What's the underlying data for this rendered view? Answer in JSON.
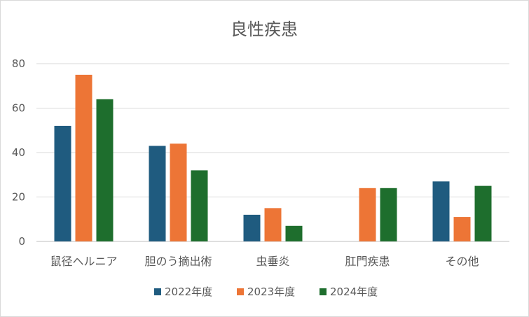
{
  "chart_data": {
    "type": "bar",
    "title": "良性疾患",
    "categories": [
      "鼠径ヘルニア",
      "胆のう摘出術",
      "虫垂炎",
      "肛門疾患",
      "その他"
    ],
    "series": [
      {
        "name": "2022年度",
        "color": "#1f5b7f",
        "values": [
          52,
          43,
          12,
          null,
          27
        ]
      },
      {
        "name": "2023年度",
        "color": "#ed7536",
        "values": [
          75,
          44,
          15,
          24,
          11
        ]
      },
      {
        "name": "2024年度",
        "color": "#1e6e2d",
        "values": [
          64,
          32,
          7,
          24,
          25
        ]
      }
    ],
    "ylim": [
      0,
      80
    ],
    "yticks": [
      0,
      20,
      40,
      60,
      80
    ],
    "grid": true,
    "legend_position": "bottom"
  }
}
